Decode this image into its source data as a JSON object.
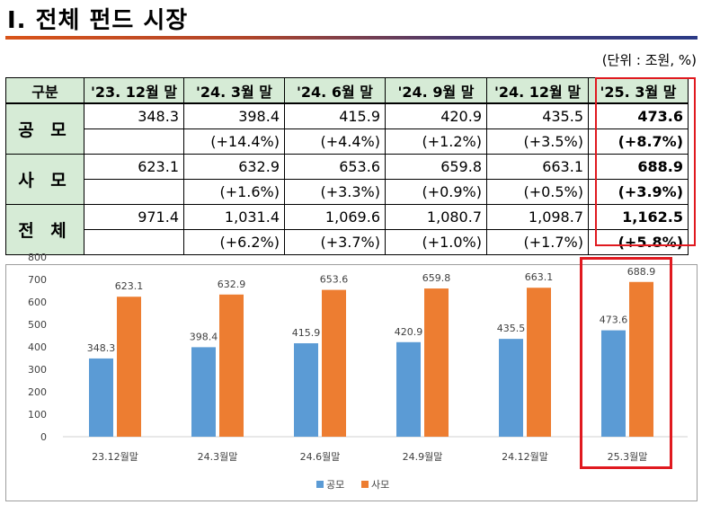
{
  "title": "Ⅰ. 전체 펀드 시장",
  "unit": "(단위 : 조원, %)",
  "table": {
    "corner": "구분",
    "columns": [
      "'23. 12월 말",
      "'24. 3월 말",
      "'24. 6월 말",
      "'24. 9월 말",
      "'24. 12월 말",
      "'25. 3월 말"
    ],
    "rows": [
      {
        "label": "공 모",
        "values": [
          "348.3",
          "398.4",
          "415.9",
          "420.9",
          "435.5",
          "473.6"
        ],
        "changes": [
          "",
          "(+14.4%)",
          "(+4.4%)",
          "(+1.2%)",
          "(+3.5%)",
          "(+8.7%)"
        ]
      },
      {
        "label": "사 모",
        "values": [
          "623.1",
          "632.9",
          "653.6",
          "659.8",
          "663.1",
          "688.9"
        ],
        "changes": [
          "",
          "(+1.6%)",
          "(+3.3%)",
          "(+0.9%)",
          "(+0.5%)",
          "(+3.9%)"
        ]
      },
      {
        "label": "전 체",
        "values": [
          "971.4",
          "1,031.4",
          "1,069.6",
          "1,080.7",
          "1,098.7",
          "1,162.5"
        ],
        "changes": [
          "",
          "(+6.2%)",
          "(+3.7%)",
          "(+1.0%)",
          "(+1.7%)",
          "(+5.8%)"
        ]
      }
    ]
  },
  "chart_data": {
    "type": "bar",
    "categories": [
      "23.12월말",
      "24.3월말",
      "24.6월말",
      "24.9월말",
      "24.12월말",
      "25.3월말"
    ],
    "series": [
      {
        "name": "공모",
        "values": [
          348.3,
          398.4,
          415.9,
          420.9,
          435.5,
          473.6
        ],
        "color": "#5b9bd5"
      },
      {
        "name": "사모",
        "values": [
          623.1,
          632.9,
          653.6,
          659.8,
          663.1,
          688.9
        ],
        "color": "#ed7d31"
      }
    ],
    "yticks": [
      "0",
      "100",
      "200",
      "300",
      "400",
      "500",
      "600",
      "700",
      "800"
    ],
    "ylim": [
      0,
      800
    ],
    "legend_position": "bottom",
    "gridlines": false,
    "highlight_category": "25.3월말"
  }
}
